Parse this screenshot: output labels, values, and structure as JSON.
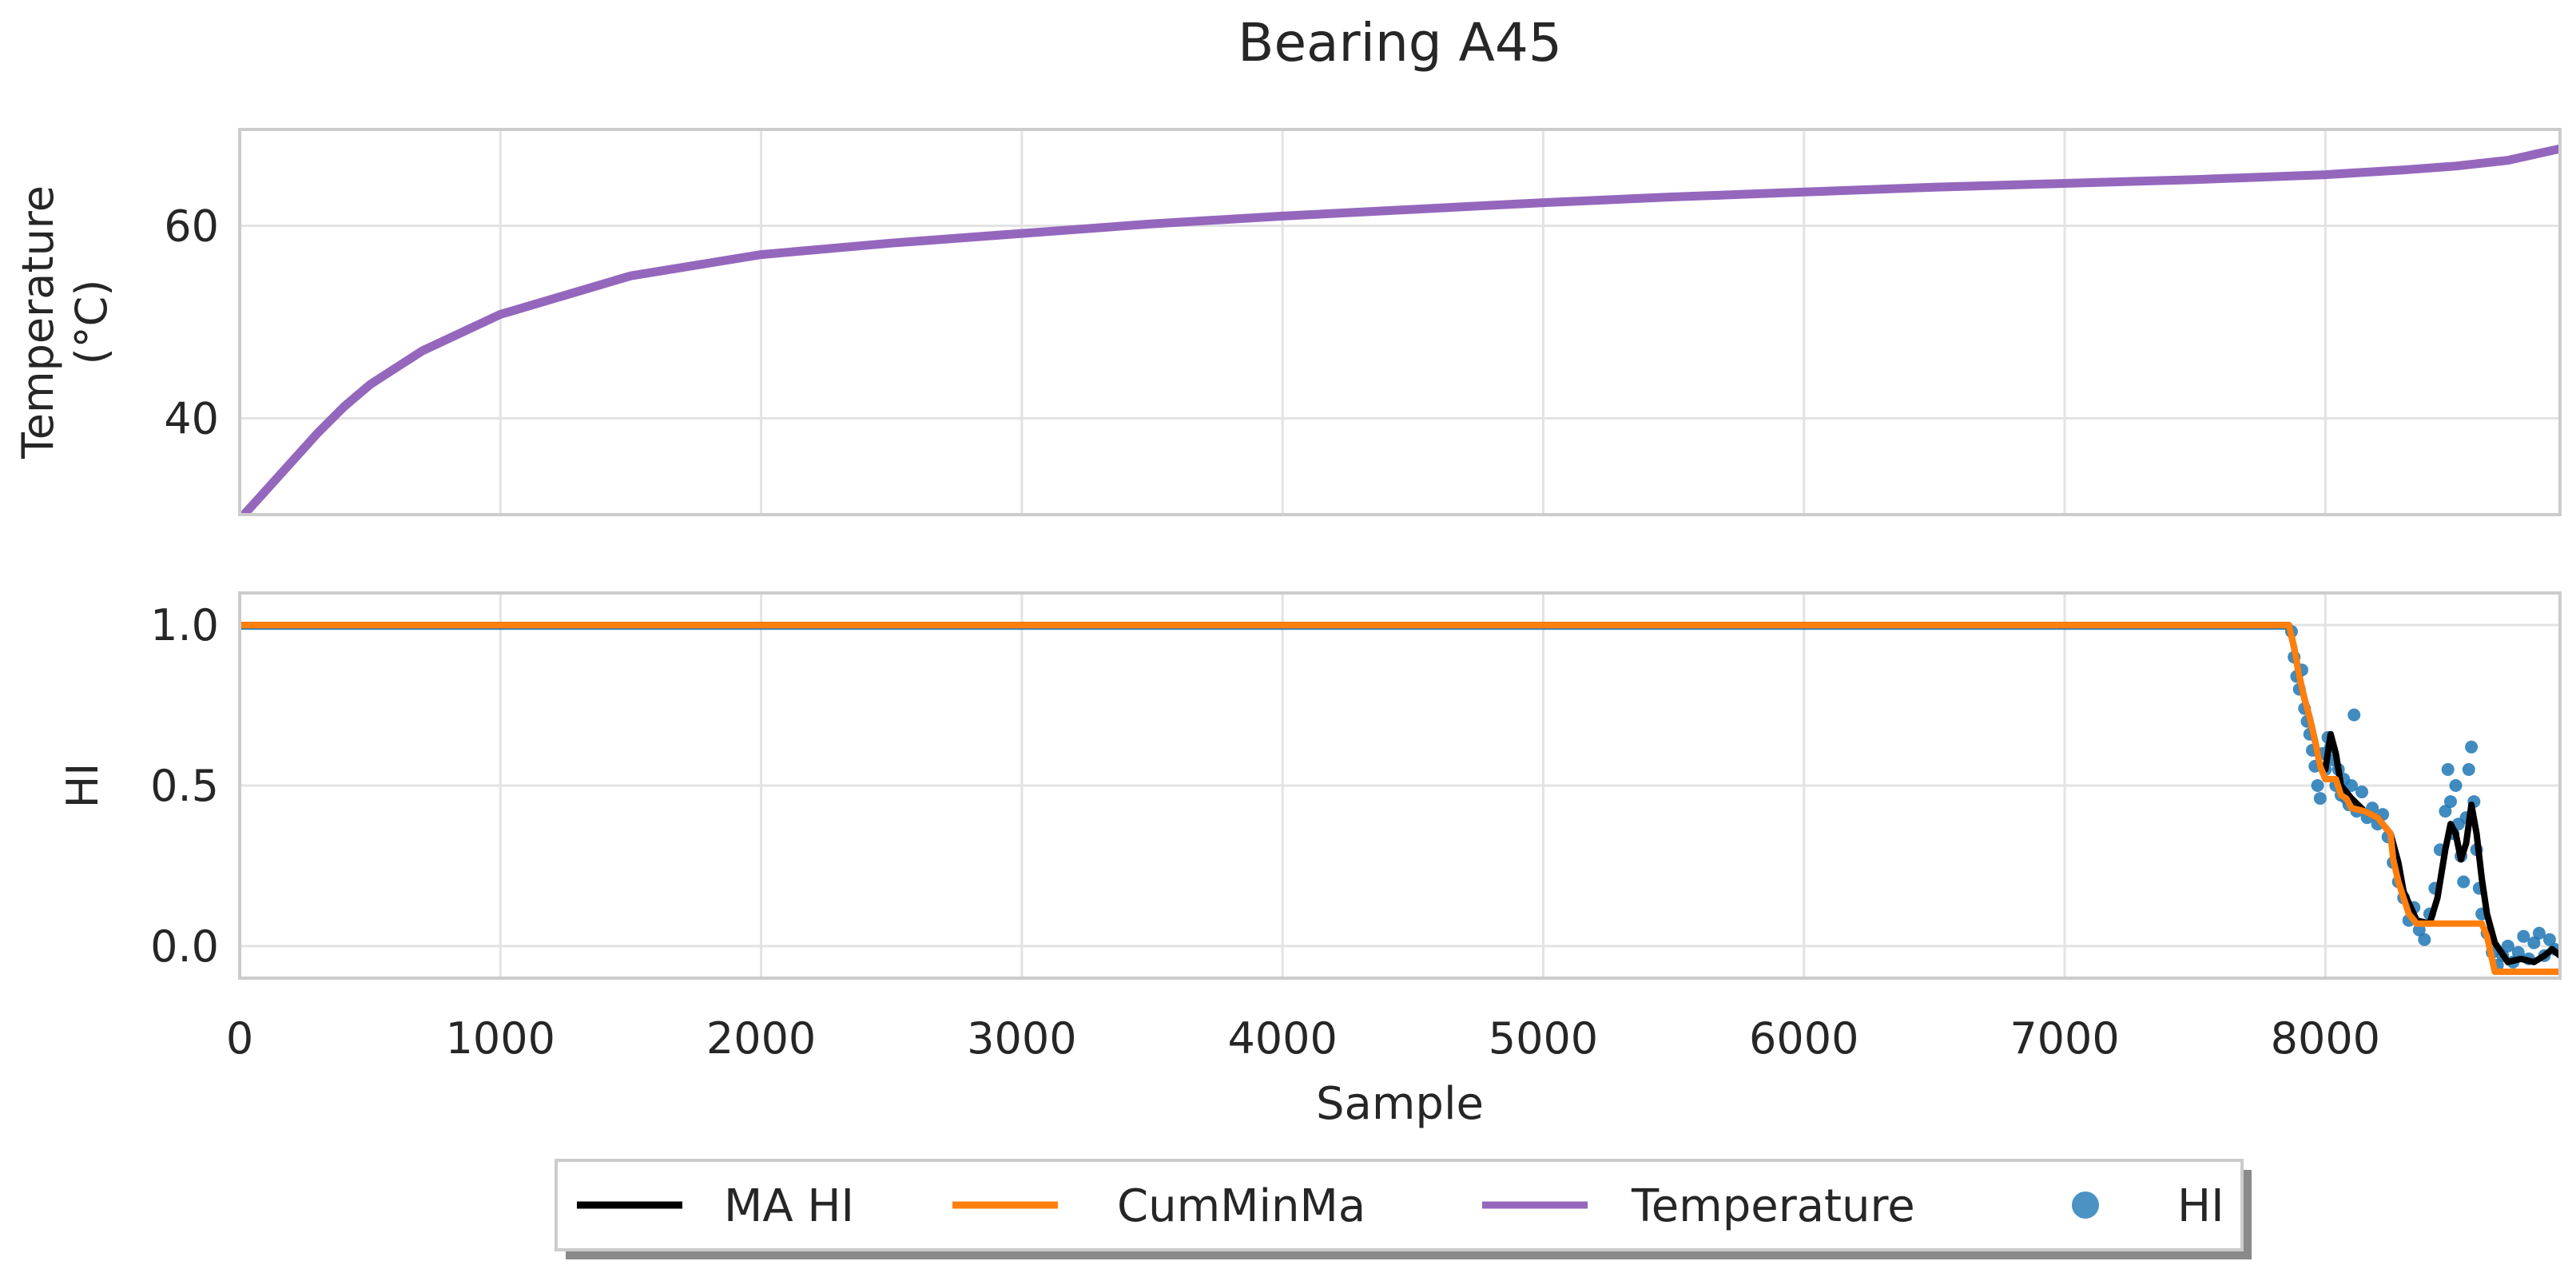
{
  "chart_data": {
    "type": "line",
    "title": "Bearing A45",
    "xlabel": "Sample",
    "xlim": [
      0,
      8900
    ],
    "xticks": [
      0,
      1000,
      2000,
      3000,
      4000,
      5000,
      6000,
      7000,
      8000
    ],
    "x_tick_labels": [
      "0",
      "1000",
      "2000",
      "3000",
      "4000",
      "5000",
      "6000",
      "7000",
      "8000"
    ],
    "grid": true,
    "legend_position": "bottom-center",
    "legend": [
      {
        "label": "MA HI",
        "color": "#000000",
        "kind": "line"
      },
      {
        "label": "CumMinMa",
        "color": "#ff7f0e",
        "kind": "line"
      },
      {
        "label": "Temperature",
        "color": "#9467bd",
        "kind": "line"
      },
      {
        "label": "HI",
        "color": "#1f77b4",
        "kind": "marker"
      }
    ],
    "panels": [
      {
        "name": "temperature",
        "ylabel_lines": [
          "Temperature",
          "(°C)"
        ],
        "ylim": [
          30,
          70
        ],
        "yticks": [
          40,
          60
        ],
        "y_tick_labels": [
          "40",
          "60"
        ],
        "series": [
          {
            "name": "Temperature",
            "color": "#9467bd",
            "x": [
              0,
              100,
              200,
              300,
              400,
              500,
              700,
              1000,
              1500,
              2000,
              2500,
              3000,
              3500,
              4000,
              4500,
              5000,
              5500,
              6000,
              6500,
              7000,
              7500,
              8000,
              8300,
              8500,
              8700,
              8900
            ],
            "y": [
              29.5,
              32.5,
              35.5,
              38.5,
              41.2,
              43.5,
              47.0,
              50.8,
              54.8,
              57.0,
              58.2,
              59.2,
              60.2,
              61.0,
              61.7,
              62.4,
              63.0,
              63.5,
              64.0,
              64.4,
              64.8,
              65.3,
              65.8,
              66.2,
              66.8,
              68.0
            ]
          }
        ]
      },
      {
        "name": "health-index",
        "ylabel": "HI",
        "ylim": [
          -0.1,
          1.1
        ],
        "yticks": [
          0.0,
          0.5,
          1.0
        ],
        "y_tick_labels": [
          "0.0",
          "0.5",
          "1.0"
        ],
        "series": [
          {
            "name": "HI",
            "color": "#1f77b4",
            "kind": "scatter",
            "points": [
              [
                7870,
                0.98
              ],
              [
                7880,
                0.9
              ],
              [
                7890,
                0.84
              ],
              [
                7900,
                0.8
              ],
              [
                7910,
                0.86
              ],
              [
                7920,
                0.74
              ],
              [
                7930,
                0.7
              ],
              [
                7940,
                0.66
              ],
              [
                7950,
                0.61
              ],
              [
                7960,
                0.56
              ],
              [
                7970,
                0.5
              ],
              [
                7980,
                0.46
              ],
              [
                7990,
                0.6
              ],
              [
                8000,
                0.55
              ],
              [
                8010,
                0.65
              ],
              [
                8020,
                0.62
              ],
              [
                8030,
                0.58
              ],
              [
                8040,
                0.5
              ],
              [
                8050,
                0.55
              ],
              [
                8060,
                0.47
              ],
              [
                8070,
                0.52
              ],
              [
                8080,
                0.46
              ],
              [
                8090,
                0.44
              ],
              [
                8100,
                0.5
              ],
              [
                8110,
                0.72
              ],
              [
                8120,
                0.42
              ],
              [
                8140,
                0.48
              ],
              [
                8160,
                0.4
              ],
              [
                8180,
                0.43
              ],
              [
                8200,
                0.38
              ],
              [
                8220,
                0.41
              ],
              [
                8240,
                0.34
              ],
              [
                8260,
                0.26
              ],
              [
                8280,
                0.2
              ],
              [
                8300,
                0.15
              ],
              [
                8320,
                0.08
              ],
              [
                8340,
                0.12
              ],
              [
                8360,
                0.05
              ],
              [
                8380,
                0.02
              ],
              [
                8400,
                0.1
              ],
              [
                8420,
                0.18
              ],
              [
                8440,
                0.3
              ],
              [
                8460,
                0.42
              ],
              [
                8470,
                0.55
              ],
              [
                8480,
                0.45
              ],
              [
                8490,
                0.35
              ],
              [
                8500,
                0.5
              ],
              [
                8510,
                0.38
              ],
              [
                8520,
                0.28
              ],
              [
                8530,
                0.2
              ],
              [
                8540,
                0.4
              ],
              [
                8550,
                0.55
              ],
              [
                8560,
                0.62
              ],
              [
                8570,
                0.45
              ],
              [
                8580,
                0.3
              ],
              [
                8590,
                0.18
              ],
              [
                8600,
                0.1
              ],
              [
                8620,
                0.04
              ],
              [
                8640,
                -0.02
              ],
              [
                8660,
                -0.06
              ],
              [
                8680,
                -0.03
              ],
              [
                8700,
                0.0
              ],
              [
                8720,
                -0.05
              ],
              [
                8740,
                -0.02
              ],
              [
                8760,
                0.03
              ],
              [
                8780,
                -0.04
              ],
              [
                8800,
                0.01
              ],
              [
                8820,
                0.04
              ],
              [
                8840,
                -0.03
              ],
              [
                8860,
                0.02
              ],
              [
                8880,
                -0.01
              ]
            ]
          },
          {
            "name": "MA HI",
            "color": "#000000",
            "x": [
              0,
              7860,
              7880,
              7900,
              7920,
              7940,
              7960,
              7980,
              8000,
              8020,
              8040,
              8060,
              8080,
              8100,
              8150,
              8200,
              8250,
              8280,
              8300,
              8350,
              8400,
              8430,
              8460,
              8480,
              8500,
              8520,
              8540,
              8560,
              8580,
              8600,
              8620,
              8650,
              8700,
              8750,
              8800,
              8840,
              8870,
              8900
            ],
            "y": [
              1.0,
              1.0,
              0.93,
              0.84,
              0.77,
              0.71,
              0.64,
              0.56,
              0.55,
              0.66,
              0.6,
              0.5,
              0.48,
              0.46,
              0.42,
              0.4,
              0.35,
              0.26,
              0.17,
              0.08,
              0.07,
              0.15,
              0.3,
              0.38,
              0.35,
              0.27,
              0.32,
              0.44,
              0.35,
              0.21,
              0.1,
              0.01,
              -0.05,
              -0.04,
              -0.05,
              -0.03,
              -0.01,
              -0.03
            ]
          },
          {
            "name": "CumMinMa",
            "color": "#ff7f0e",
            "x": [
              0,
              7860,
              7880,
              7900,
              7920,
              7940,
              7960,
              7980,
              8000,
              8040,
              8060,
              8080,
              8100,
              8150,
              8200,
              8250,
              8260,
              8280,
              8300,
              8320,
              8340,
              8350,
              8600,
              8620,
              8650,
              8900
            ],
            "y": [
              1.0,
              1.0,
              0.93,
              0.84,
              0.77,
              0.71,
              0.64,
              0.56,
              0.52,
              0.52,
              0.47,
              0.46,
              0.43,
              0.42,
              0.4,
              0.35,
              0.27,
              0.2,
              0.15,
              0.1,
              0.08,
              0.07,
              0.07,
              0.03,
              -0.08,
              -0.08
            ]
          }
        ]
      }
    ]
  }
}
